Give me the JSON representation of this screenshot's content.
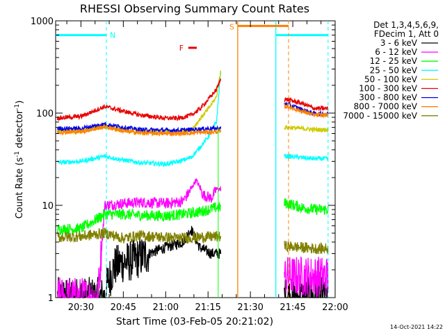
{
  "chart_data": {
    "type": "line",
    "title": "RHESSI Observing Summary Count Rates",
    "xlabel": "Start Time (03-Feb-05 20:21:02)",
    "ylabel_main": "Count Rate (s",
    "ylabel_sup1": "-1",
    "ylabel_mid": " detector",
    "ylabel_sup2": "-1",
    "ylabel_end": ")",
    "y_scale": "log",
    "ylim": [
      1,
      1000
    ],
    "xlim": [
      "20:21:02",
      "22:00"
    ],
    "x_ticks": [
      "20:30",
      "20:45",
      "21:00",
      "21:15",
      "21:30",
      "21:45",
      "22:00"
    ],
    "y_ticks": [
      "1",
      "10",
      "100",
      "1000"
    ],
    "legend_header": [
      "Det 1,3,4,5,6,9,",
      "FDecim 1, Att 0"
    ],
    "legend_placement": "right",
    "timestamp": "14-Oct-2021 14:22",
    "series": [
      {
        "name": "3 - 6 keV",
        "color": "#000000",
        "values": [
          [
            20.45,
            1
          ],
          [
            20.5,
            1
          ],
          [
            20.55,
            1
          ],
          [
            20.6,
            1
          ],
          [
            20.64,
            1
          ],
          [
            20.66,
            1.5
          ],
          [
            20.7,
            2.2
          ],
          [
            20.75,
            2.4
          ],
          [
            20.8,
            2.5
          ],
          [
            20.9,
            3
          ],
          [
            21.0,
            3.5
          ],
          [
            21.1,
            4
          ],
          [
            21.15,
            5.5
          ],
          [
            21.2,
            3.5
          ],
          [
            21.27,
            3
          ]
        ],
        "segment2": [
          [
            21.72,
            1
          ]
        ],
        "noisy": true
      },
      {
        "name": "6 - 12 keV",
        "color": "#ff00ff",
        "values": [
          [
            20.35,
            1
          ],
          [
            20.5,
            1
          ],
          [
            20.6,
            1
          ],
          [
            20.64,
            10
          ],
          [
            20.75,
            10.5
          ],
          [
            20.85,
            10.8
          ],
          [
            21.0,
            10.5
          ],
          [
            21.1,
            11
          ],
          [
            21.14,
            14
          ],
          [
            21.18,
            19
          ],
          [
            21.22,
            13
          ],
          [
            21.27,
            12
          ],
          [
            21.3,
            15
          ]
        ],
        "segment2": [
          [
            21.72,
            1.7
          ],
          [
            21.8,
            1.7
          ]
        ],
        "noisy": true
      },
      {
        "name": "12 - 25 keV",
        "color": "#00ff00",
        "values": [
          [
            20.35,
            5.5
          ],
          [
            20.5,
            5.6
          ],
          [
            20.64,
            8
          ],
          [
            20.75,
            8
          ],
          [
            20.85,
            7.8
          ],
          [
            21.0,
            7.7
          ],
          [
            21.1,
            8
          ],
          [
            21.2,
            8.5
          ],
          [
            21.3,
            9.5
          ]
        ],
        "segment2": [
          [
            21.72,
            10.5
          ],
          [
            21.8,
            9.5
          ],
          [
            21.88,
            9
          ]
        ],
        "noisy": true
      },
      {
        "name": "25 - 50 keV",
        "color": "#00ffff",
        "values": [
          [
            20.35,
            29
          ],
          [
            20.5,
            30
          ],
          [
            20.64,
            34
          ],
          [
            20.75,
            31
          ],
          [
            20.85,
            29
          ],
          [
            21.0,
            28
          ],
          [
            21.08,
            30
          ],
          [
            21.15,
            33
          ],
          [
            21.2,
            42
          ],
          [
            21.25,
            55
          ],
          [
            21.3,
            80
          ],
          [
            21.33,
            380
          ]
        ],
        "segment2": [
          [
            21.72,
            34
          ],
          [
            21.8,
            33
          ],
          [
            21.88,
            32
          ]
        ],
        "noisy": true
      },
      {
        "name": "50 - 100 keV",
        "color": "#cccc00",
        "values": [
          [
            20.35,
            63
          ],
          [
            20.5,
            64
          ],
          [
            20.64,
            71
          ],
          [
            20.75,
            65
          ],
          [
            20.85,
            62
          ],
          [
            21.0,
            61
          ],
          [
            21.08,
            62
          ],
          [
            21.15,
            65
          ],
          [
            21.2,
            85
          ],
          [
            21.25,
            110
          ],
          [
            21.3,
            150
          ],
          [
            21.33,
            330
          ]
        ],
        "segment2": [
          [
            21.72,
            70
          ],
          [
            21.8,
            68
          ],
          [
            21.88,
            66
          ]
        ],
        "noisy": true
      },
      {
        "name": "100 - 300 keV",
        "color": "#e80000",
        "values": [
          [
            20.35,
            88
          ],
          [
            20.5,
            92
          ],
          [
            20.64,
            118
          ],
          [
            20.75,
            105
          ],
          [
            20.85,
            95
          ],
          [
            21.0,
            88
          ],
          [
            21.08,
            88
          ],
          [
            21.15,
            95
          ],
          [
            21.2,
            110
          ],
          [
            21.25,
            140
          ],
          [
            21.3,
            180
          ],
          [
            21.33,
            250
          ]
        ],
        "segment2": [
          [
            21.72,
            140
          ],
          [
            21.8,
            128
          ],
          [
            21.88,
            112
          ]
        ],
        "noisy": true
      },
      {
        "name": "300 - 800 keV",
        "color": "#0000e6",
        "values": [
          [
            20.35,
            68
          ],
          [
            20.5,
            68
          ],
          [
            20.64,
            76
          ],
          [
            20.75,
            70
          ],
          [
            20.85,
            66
          ],
          [
            21.0,
            65
          ],
          [
            21.08,
            65
          ],
          [
            21.15,
            66
          ],
          [
            21.2,
            67
          ],
          [
            21.25,
            68
          ],
          [
            21.3,
            68
          ]
        ],
        "segment2": [
          [
            21.72,
            125
          ],
          [
            21.8,
            110
          ],
          [
            21.88,
            98
          ]
        ],
        "noisy": true
      },
      {
        "name": "800 - 7000 keV",
        "color": "#ff8000",
        "values": [
          [
            20.35,
            62
          ],
          [
            20.5,
            63
          ],
          [
            20.64,
            71
          ],
          [
            20.75,
            64
          ],
          [
            20.85,
            61
          ],
          [
            21.0,
            60
          ],
          [
            21.08,
            60
          ],
          [
            21.15,
            61
          ],
          [
            21.2,
            62
          ],
          [
            21.25,
            62
          ],
          [
            21.3,
            63
          ]
        ],
        "segment2": [
          [
            21.72,
            118
          ],
          [
            21.8,
            105
          ],
          [
            21.88,
            95
          ]
        ],
        "noisy": true
      },
      {
        "name": "7000 - 15000 keV",
        "color": "#808000",
        "values": [
          [
            20.35,
            4.5
          ],
          [
            20.5,
            4.6
          ],
          [
            20.64,
            5
          ],
          [
            20.75,
            4.4
          ],
          [
            20.85,
            4.7
          ],
          [
            21.0,
            4.5
          ],
          [
            21.1,
            4.4
          ],
          [
            21.2,
            4.5
          ],
          [
            21.3,
            4.6
          ]
        ],
        "segment2": [
          [
            21.72,
            3.6
          ],
          [
            21.8,
            3.5
          ],
          [
            21.88,
            3.4
          ]
        ],
        "noisy": true
      }
    ],
    "annotations": {
      "night": {
        "label": "N",
        "color": "#00ffff",
        "level": 700,
        "intervals": [
          [
            "20:21:02",
            "20:39:00"
          ],
          [
            "21:39:00",
            "21:57:30"
          ]
        ]
      },
      "saa": {
        "label": "S",
        "color": "#ff8000",
        "level": 880,
        "interval": [
          "21:25:30",
          "21:43:30"
        ]
      },
      "flare": {
        "label": "F",
        "color": "#e80000",
        "level": 510,
        "interval": [
          "21:08:00",
          "21:11:00"
        ]
      }
    }
  }
}
